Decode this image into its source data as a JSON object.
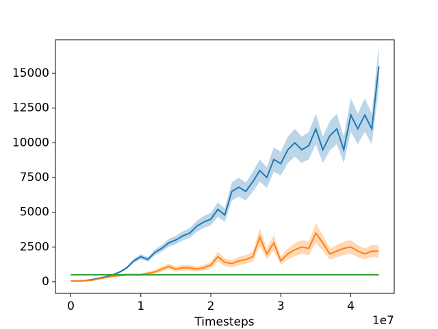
{
  "chart_data": {
    "type": "line",
    "x_label": "Timesteps",
    "x_offset_label": "1e7",
    "x": [
      0,
      0.1,
      0.2,
      0.3,
      0.4,
      0.5,
      0.6,
      0.7,
      0.8,
      0.9,
      1.0,
      1.1,
      1.2,
      1.3,
      1.4,
      1.5,
      1.6,
      1.7,
      1.8,
      1.9,
      2.0,
      2.1,
      2.2,
      2.3,
      2.4,
      2.5,
      2.6,
      2.7,
      2.8,
      2.9,
      3.0,
      3.1,
      3.2,
      3.3,
      3.4,
      3.5,
      3.6,
      3.7,
      3.8,
      3.9,
      4.0,
      4.1,
      4.2,
      4.3,
      4.4
    ],
    "series": [
      {
        "color": "#1f77b4",
        "values": [
          50,
          60,
          80,
          150,
          250,
          350,
          500,
          700,
          1000,
          1500,
          1800,
          1600,
          2100,
          2400,
          2800,
          3000,
          3300,
          3500,
          4000,
          4300,
          4500,
          5200,
          4800,
          6500,
          6800,
          6500,
          7200,
          8000,
          7500,
          8800,
          8500,
          9500,
          10000,
          9500,
          9800,
          11000,
          9500,
          10500,
          11000,
          9500,
          12000,
          11000,
          12000,
          11000,
          15500
        ],
        "lower": [
          45,
          54,
          72,
          135,
          225,
          315,
          450,
          630,
          900,
          1350,
          1620,
          1440,
          1890,
          2160,
          2520,
          2700,
          2970,
          3150,
          3600,
          3870,
          4050,
          4680,
          4320,
          5850,
          6120,
          5850,
          6480,
          7200,
          6750,
          7920,
          7650,
          8550,
          9000,
          8550,
          8820,
          9900,
          8550,
          9450,
          9900,
          8550,
          10800,
          9900,
          10800,
          9900,
          13950
        ],
        "upper": [
          55,
          66,
          88,
          165,
          275,
          385,
          550,
          770,
          1100,
          1650,
          1980,
          1760,
          2310,
          2640,
          3080,
          3300,
          3630,
          3850,
          4400,
          4730,
          4950,
          5720,
          5280,
          7150,
          7480,
          7150,
          7920,
          8800,
          8250,
          9680,
          9350,
          10450,
          11000,
          10450,
          10780,
          12100,
          10450,
          11550,
          12100,
          10450,
          13200,
          12100,
          13200,
          12100,
          17050
        ]
      },
      {
        "color": "#ff7f0e",
        "values": [
          50,
          50,
          60,
          100,
          200,
          300,
          400,
          450,
          500,
          500,
          500,
          600,
          700,
          900,
          1100,
          900,
          1000,
          1000,
          900,
          1000,
          1200,
          1800,
          1400,
          1300,
          1500,
          1600,
          1800,
          3200,
          2000,
          2800,
          1500,
          2000,
          2300,
          2500,
          2400,
          3500,
          2800,
          2000,
          2200,
          2400,
          2500,
          2200,
          2000,
          2200,
          2200
        ],
        "lower": [
          40,
          40,
          48,
          80,
          160,
          240,
          320,
          360,
          400,
          400,
          400,
          480,
          560,
          720,
          880,
          720,
          800,
          800,
          720,
          800,
          960,
          1440,
          1120,
          1040,
          1200,
          1280,
          1440,
          2560,
          1600,
          2240,
          1200,
          1600,
          1840,
          2000,
          1920,
          2800,
          2240,
          1600,
          1760,
          1920,
          2000,
          1760,
          1600,
          1760,
          1760
        ],
        "upper": [
          60,
          60,
          72,
          120,
          240,
          360,
          480,
          540,
          600,
          600,
          600,
          720,
          840,
          1080,
          1320,
          1080,
          1200,
          1200,
          1080,
          1200,
          1440,
          2160,
          1680,
          1560,
          1800,
          1920,
          2160,
          3840,
          2400,
          3360,
          1800,
          2400,
          2760,
          3000,
          2880,
          4200,
          3360,
          2400,
          2640,
          2880,
          3000,
          2640,
          2400,
          2640,
          2640
        ]
      },
      {
        "color": "#2ca02c",
        "x": [
          0,
          4.4
        ],
        "values": [
          500,
          500
        ]
      }
    ],
    "xlim": [
      -0.22,
      4.62
    ],
    "xticks": [
      0,
      1,
      2,
      3,
      4
    ],
    "ylim": [
      -840,
      17420
    ],
    "yticks": [
      0,
      2500,
      5000,
      7500,
      10000,
      12500,
      15000
    ],
    "grid": false
  }
}
